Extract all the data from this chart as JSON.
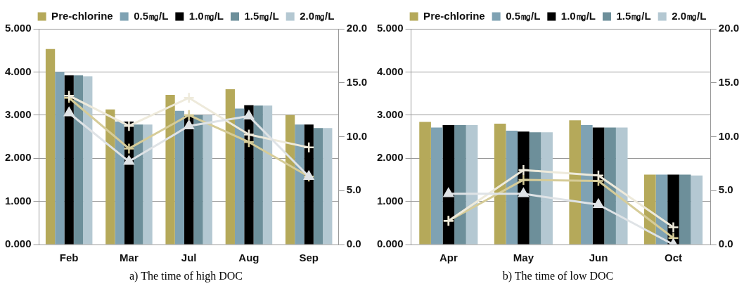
{
  "chart_data": [
    {
      "type": "bar",
      "title": "a) The time of high DOC",
      "categories": [
        "Feb",
        "Mar",
        "Jul",
        "Aug",
        "Sep"
      ],
      "series": [
        {
          "name": "Pre-chlorine",
          "color": "#b5a95a",
          "values": [
            4.53,
            3.13,
            3.47,
            3.6,
            3.0
          ]
        },
        {
          "name": "0.5㎎/L",
          "color": "#7fa2b3",
          "values": [
            4.0,
            2.85,
            3.1,
            3.15,
            2.78
          ]
        },
        {
          "name": "1.0㎎/L",
          "color": "#000000",
          "values": [
            3.92,
            2.85,
            3.0,
            3.23,
            2.78
          ]
        },
        {
          "name": "1.5㎎/L",
          "color": "#6d8f9a",
          "values": [
            3.92,
            2.78,
            3.0,
            3.22,
            2.7
          ]
        },
        {
          "name": "2.0㎎/L",
          "color": "#b4c8d2",
          "values": [
            3.9,
            2.78,
            3.0,
            3.22,
            2.7
          ]
        },
        {
          "type": "line",
          "axis": "y2",
          "marker": "cross",
          "color": "#d6cc98",
          "values": [
            13.6,
            8.9,
            12.0,
            9.5,
            6.3
          ]
        },
        {
          "type": "line",
          "axis": "y2",
          "marker": "cross",
          "color": "#eeeadb",
          "values": [
            13.8,
            11.0,
            13.6,
            10.2,
            9.0
          ]
        },
        {
          "type": "line",
          "axis": "y2",
          "marker": "triangle",
          "color": "#dfe3e6",
          "values": [
            12.2,
            7.7,
            11.0,
            11.9,
            6.3
          ]
        }
      ],
      "ylim": [
        0,
        5
      ],
      "yticks": [
        {
          "value": 0,
          "label": "0.000"
        },
        {
          "value": 1,
          "label": "1.000"
        },
        {
          "value": 2,
          "label": "2.000"
        },
        {
          "value": 3,
          "label": "3.000"
        },
        {
          "value": 4,
          "label": "4.000"
        },
        {
          "value": 5,
          "label": "5.000"
        }
      ],
      "y2lim": [
        0,
        20
      ],
      "y2ticks": [
        {
          "value": 0,
          "label": "0.0"
        },
        {
          "value": 5,
          "label": "5.0"
        },
        {
          "value": 10,
          "label": "10.0"
        },
        {
          "value": 15,
          "label": "15.0"
        },
        {
          "value": 20,
          "label": "20.0"
        }
      ],
      "grid": "y",
      "legend": "top"
    },
    {
      "type": "bar",
      "title": "b) The time of low DOC",
      "categories": [
        "Apr",
        "May",
        "Jun",
        "Oct"
      ],
      "series": [
        {
          "name": "Pre-chlorine",
          "color": "#b5a95a",
          "values": [
            2.84,
            2.8,
            2.88,
            1.62
          ]
        },
        {
          "name": "0.5㎎/L",
          "color": "#7fa2b3",
          "values": [
            2.71,
            2.64,
            2.77,
            1.62
          ]
        },
        {
          "name": "1.0㎎/L",
          "color": "#000000",
          "values": [
            2.77,
            2.62,
            2.71,
            1.62
          ]
        },
        {
          "name": "1.5㎎/L",
          "color": "#6d8f9a",
          "values": [
            2.77,
            2.6,
            2.71,
            1.62
          ]
        },
        {
          "name": "2.0㎎/L",
          "color": "#b4c8d2",
          "values": [
            2.77,
            2.6,
            2.71,
            1.6
          ]
        },
        {
          "type": "line",
          "axis": "y2",
          "marker": "cross",
          "color": "#d6cc98",
          "values": [
            2.2,
            6.0,
            5.9,
            0.6
          ]
        },
        {
          "type": "line",
          "axis": "y2",
          "marker": "cross",
          "color": "#eeeadb",
          "values": [
            2.2,
            6.9,
            6.4,
            1.6
          ]
        },
        {
          "type": "line",
          "axis": "y2",
          "marker": "triangle",
          "color": "#dfe3e6",
          "values": [
            4.7,
            4.7,
            3.7,
            0.0
          ]
        }
      ],
      "ylim": [
        0,
        5
      ],
      "yticks": [
        {
          "value": 0,
          "label": "0.000"
        },
        {
          "value": 1,
          "label": "1.000"
        },
        {
          "value": 2,
          "label": "2.000"
        },
        {
          "value": 3,
          "label": "3.000"
        },
        {
          "value": 4,
          "label": "4.000"
        },
        {
          "value": 5,
          "label": "5.000"
        }
      ],
      "y2lim": [
        0,
        20
      ],
      "y2ticks": [
        {
          "value": 0,
          "label": "0.0"
        },
        {
          "value": 5,
          "label": "5.0"
        },
        {
          "value": 10,
          "label": "10.0"
        },
        {
          "value": 15,
          "label": "15.0"
        },
        {
          "value": 20,
          "label": "20.0"
        }
      ],
      "grid": "y",
      "legend": "top"
    }
  ]
}
